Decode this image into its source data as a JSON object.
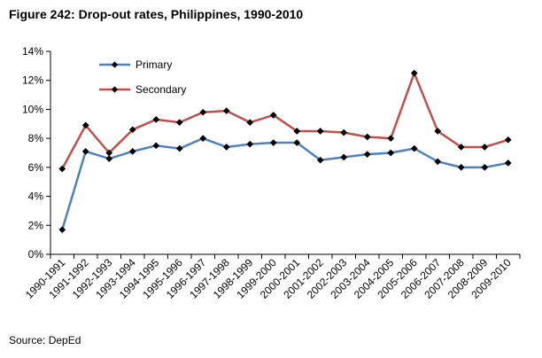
{
  "title": "Figure 242: Drop-out rates, Philippines, 1990-2010",
  "source": "Source: DepEd",
  "chart_data": {
    "type": "line",
    "categories": [
      "1990-1991",
      "1991-1992",
      "1992-1993",
      "1993-1994",
      "1994-1995",
      "1995-1996",
      "1996-1997",
      "1997-1998",
      "1998-1999",
      "1999-2000",
      "2000-2001",
      "2001-2002",
      "2002-2003",
      "2003-2004",
      "2004-2005",
      "2005-2006",
      "2006-2007",
      "2007-2008",
      "2008-2009",
      "2009-2010"
    ],
    "series": [
      {
        "name": "Primary",
        "color": "#4F81BD",
        "values": [
          1.7,
          7.1,
          6.6,
          7.1,
          7.5,
          7.3,
          8.0,
          7.4,
          7.6,
          7.7,
          7.7,
          6.5,
          6.7,
          6.9,
          7.0,
          7.3,
          6.4,
          6.0,
          6.0,
          6.3
        ]
      },
      {
        "name": "Secondary",
        "color": "#C0504D",
        "values": [
          5.9,
          8.9,
          7.0,
          8.6,
          9.3,
          9.1,
          9.8,
          9.9,
          9.1,
          9.6,
          8.5,
          8.5,
          8.4,
          8.1,
          8.0,
          12.5,
          8.5,
          7.4,
          7.4,
          7.9
        ]
      }
    ],
    "ylim": [
      0,
      14
    ],
    "yticks": [
      0,
      2,
      4,
      6,
      8,
      10,
      12,
      14
    ],
    "ytick_labels": [
      "0%",
      "2%",
      "4%",
      "6%",
      "8%",
      "10%",
      "12%",
      "14%"
    ],
    "legend_position": "top-left",
    "grid": false
  }
}
